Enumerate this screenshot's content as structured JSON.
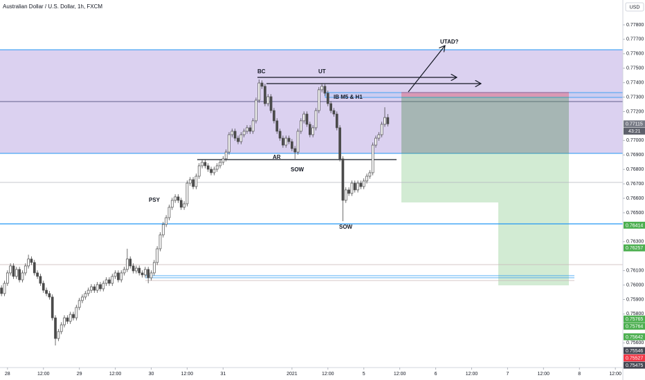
{
  "chart_data": {
    "type": "candlestick",
    "title": "Australian Dollar / U.S. Dollar, 1h, FXCM",
    "currency": "USD",
    "countdown": "43:21",
    "annotations": [
      "BC",
      "UT",
      "UTAD?",
      "IB M5 & H1",
      "AR",
      "SOW",
      "SOW",
      "PSY"
    ],
    "xlim": [
      -0.5,
      207.5
    ],
    "xticks": [
      {
        "value": 2,
        "label": "28"
      },
      {
        "value": 14,
        "label": "12:00"
      },
      {
        "value": 26,
        "label": "29"
      },
      {
        "value": 38,
        "label": "12:00"
      },
      {
        "value": 50,
        "label": "30"
      },
      {
        "value": 62,
        "label": "12:00"
      },
      {
        "value": 74,
        "label": "31"
      },
      {
        "value": 97,
        "label": "2021"
      },
      {
        "value": 109,
        "label": "12:00"
      },
      {
        "value": 121,
        "label": "5"
      },
      {
        "value": 133,
        "label": "12:00"
      },
      {
        "value": 145,
        "label": "6"
      },
      {
        "value": 157,
        "label": "12:00"
      },
      {
        "value": 169,
        "label": "7"
      },
      {
        "value": 181,
        "label": "12:00"
      },
      {
        "value": 193,
        "label": "8"
      },
      {
        "value": 205,
        "label": "12:00"
      }
    ],
    "ylim": [
      0.75429,
      0.77972
    ],
    "yticks": [
      {
        "value": 0.778,
        "label": "0.77800"
      },
      {
        "value": 0.777,
        "label": "0.77700"
      },
      {
        "value": 0.776,
        "label": "0.77600"
      },
      {
        "value": 0.775,
        "label": "0.77500"
      },
      {
        "value": 0.774,
        "label": "0.77400"
      },
      {
        "value": 0.773,
        "label": "0.77300"
      },
      {
        "value": 0.772,
        "label": "0.77200"
      },
      {
        "value": 0.77,
        "label": "0.77000"
      },
      {
        "value": 0.769,
        "label": "0.76900"
      },
      {
        "value": 0.768,
        "label": "0.76800"
      },
      {
        "value": 0.767,
        "label": "0.76700"
      },
      {
        "value": 0.766,
        "label": "0.76600"
      },
      {
        "value": 0.765,
        "label": "0.76500"
      },
      {
        "value": 0.763,
        "label": "0.76300"
      },
      {
        "value": 0.761,
        "label": "0.76100"
      },
      {
        "value": 0.76,
        "label": "0.76000"
      },
      {
        "value": 0.759,
        "label": "0.75900"
      },
      {
        "value": 0.758,
        "label": "0.75800"
      },
      {
        "value": 0.756,
        "label": "0.75600"
      }
    ],
    "grid": false,
    "up_color": "#ffffff",
    "down_color": "#4a4a4a",
    "open": [
      0.7598,
      0.75941,
      0.76012,
      0.76084,
      0.76132,
      0.7606,
      0.76108,
      0.76036,
      0.76084,
      0.76132,
      0.7618,
      0.76156,
      0.76084,
      0.7606,
      0.76012,
      0.75964,
      0.75941,
      0.75917,
      0.75773,
      0.7563,
      0.75678,
      0.75725,
      0.75773,
      0.75749,
      0.75797,
      0.75773,
      0.75845,
      0.75893,
      0.75917,
      0.75941,
      0.75964,
      0.75988,
      0.75964,
      0.76003,
      0.75974,
      0.76012,
      0.76036,
      0.76012,
      0.7606,
      0.76084,
      0.76036,
      0.76084,
      0.76108,
      0.7618,
      0.76132,
      0.76098,
      0.76117,
      0.76084,
      0.7607,
      0.76108,
      0.7605,
      0.76084,
      0.76156,
      0.76251,
      0.76347,
      0.76419,
      0.76466,
      0.76538,
      0.76586,
      0.7661,
      0.76586,
      0.76538,
      0.76562,
      0.76705,
      0.76729,
      0.76681,
      0.76753,
      0.76825,
      0.76849,
      0.76825,
      0.76801,
      0.76777,
      0.76801,
      0.76825,
      0.76849,
      0.76873,
      0.7692,
      0.7704,
      0.77064,
      0.77016,
      0.76992,
      0.7704,
      0.77064,
      0.77088,
      0.77064,
      0.77136,
      0.77279,
      0.77398,
      0.77375,
      0.77255,
      0.77303,
      0.77207,
      0.77136,
      0.77064,
      0.77016,
      0.76968,
      0.77016,
      0.76992,
      0.76944,
      0.7692,
      0.77064,
      0.77136,
      0.77183,
      0.77112,
      0.7704,
      0.77088,
      0.77207,
      0.77351,
      0.77375,
      0.77327,
      0.77255,
      0.77207,
      0.77183,
      0.77088,
      0.76873,
      0.76586,
      0.76658,
      0.76634,
      0.76705,
      0.76658,
      0.76705,
      0.76681,
      0.7672,
      0.76753,
      0.76777,
      0.76968,
      0.77016,
      0.7704,
      0.77112,
      0.77159
    ],
    "high": [
      0.75998,
      0.7603,
      0.76102,
      0.7615,
      0.7615,
      0.76126,
      0.76126,
      0.76102,
      0.7615,
      0.7621,
      0.76198,
      0.76174,
      0.76102,
      0.76078,
      0.7603,
      0.75982,
      0.75959,
      0.75935,
      0.75791,
      0.75696,
      0.75743,
      0.75791,
      0.75791,
      0.75815,
      0.75815,
      0.75863,
      0.75911,
      0.75935,
      0.75959,
      0.75982,
      0.76006,
      0.76006,
      0.76021,
      0.76021,
      0.7603,
      0.76054,
      0.76054,
      0.76078,
      0.76102,
      0.76102,
      0.76102,
      0.76126,
      0.76251,
      0.76198,
      0.7615,
      0.76135,
      0.76135,
      0.76102,
      0.76126,
      0.76126,
      0.76102,
      0.76174,
      0.76269,
      0.76365,
      0.76437,
      0.76484,
      0.76556,
      0.76604,
      0.76628,
      0.76628,
      0.76604,
      0.7658,
      0.76723,
      0.76747,
      0.76747,
      0.76771,
      0.76843,
      0.76867,
      0.76867,
      0.76843,
      0.76819,
      0.76819,
      0.76843,
      0.76867,
      0.76891,
      0.76938,
      0.77058,
      0.77082,
      0.77082,
      0.77034,
      0.77058,
      0.77082,
      0.77106,
      0.77106,
      0.77154,
      0.77297,
      0.77422,
      0.77416,
      0.77393,
      0.77321,
      0.77321,
      0.77225,
      0.77154,
      0.77082,
      0.77034,
      0.77034,
      0.77034,
      0.7701,
      0.76962,
      0.77082,
      0.77154,
      0.77201,
      0.77201,
      0.7713,
      0.77106,
      0.77225,
      0.77369,
      0.77398,
      0.77393,
      0.77345,
      0.77273,
      0.77225,
      0.77201,
      0.77106,
      0.76891,
      0.76676,
      0.76676,
      0.76723,
      0.76723,
      0.76723,
      0.76723,
      0.76738,
      0.76771,
      0.76795,
      0.76986,
      0.77034,
      0.77058,
      0.7713,
      0.7723,
      0.77183
    ],
    "low": [
      0.75923,
      0.75923,
      0.75994,
      0.76066,
      0.76042,
      0.76042,
      0.76018,
      0.76018,
      0.76066,
      0.76114,
      0.76138,
      0.76066,
      0.76042,
      0.75994,
      0.75946,
      0.75923,
      0.75899,
      0.75755,
      0.75582,
      0.75612,
      0.7566,
      0.75707,
      0.75731,
      0.75731,
      0.75755,
      0.75755,
      0.75827,
      0.75875,
      0.75899,
      0.75923,
      0.75946,
      0.75946,
      0.75946,
      0.75956,
      0.75956,
      0.75994,
      0.75994,
      0.75994,
      0.76042,
      0.76018,
      0.76018,
      0.76066,
      0.7609,
      0.76114,
      0.7608,
      0.7608,
      0.76066,
      0.76052,
      0.76052,
      0.76012,
      0.76032,
      0.76066,
      0.76138,
      0.76233,
      0.76329,
      0.76401,
      0.76448,
      0.7652,
      0.76568,
      0.76568,
      0.7652,
      0.7652,
      0.76544,
      0.76687,
      0.76663,
      0.76663,
      0.76735,
      0.76807,
      0.76807,
      0.76783,
      0.76759,
      0.76759,
      0.76783,
      0.76807,
      0.76831,
      0.76855,
      0.76902,
      0.77022,
      0.76998,
      0.76974,
      0.76974,
      0.77022,
      0.77046,
      0.77046,
      0.77046,
      0.77118,
      0.77261,
      0.77357,
      0.77237,
      0.77237,
      0.77189,
      0.77118,
      0.77046,
      0.76998,
      0.7695,
      0.7695,
      0.76974,
      0.76926,
      0.76873,
      0.76902,
      0.77046,
      0.77118,
      0.77094,
      0.77022,
      0.77022,
      0.7707,
      0.77189,
      0.77333,
      0.77309,
      0.77237,
      0.77189,
      0.77165,
      0.7707,
      0.76855,
      0.76442,
      0.76568,
      0.76616,
      0.76616,
      0.7664,
      0.7664,
      0.76663,
      0.76663,
      0.76702,
      0.76735,
      0.76759,
      0.7695,
      0.76998,
      0.77022,
      0.77094,
      0.77097
    ],
    "close": [
      0.75941,
      0.76012,
      0.76084,
      0.76132,
      0.7606,
      0.76108,
      0.76036,
      0.76084,
      0.76132,
      0.7618,
      0.76156,
      0.76084,
      0.7606,
      0.76012,
      0.75964,
      0.75941,
      0.75917,
      0.75773,
      0.7563,
      0.75678,
      0.75725,
      0.75773,
      0.75749,
      0.75797,
      0.75773,
      0.75845,
      0.75893,
      0.75917,
      0.75941,
      0.75964,
      0.75988,
      0.75964,
      0.76003,
      0.75974,
      0.76012,
      0.76036,
      0.76012,
      0.7606,
      0.76084,
      0.76036,
      0.76084,
      0.76108,
      0.7618,
      0.76132,
      0.76098,
      0.76117,
      0.76084,
      0.7607,
      0.76108,
      0.7605,
      0.76084,
      0.76156,
      0.76251,
      0.76347,
      0.76419,
      0.76466,
      0.76538,
      0.76586,
      0.7661,
      0.76586,
      0.76538,
      0.76562,
      0.76705,
      0.76729,
      0.76681,
      0.76753,
      0.76825,
      0.76849,
      0.76825,
      0.76801,
      0.76777,
      0.76801,
      0.76825,
      0.76849,
      0.76873,
      0.7692,
      0.7704,
      0.77064,
      0.77016,
      0.76992,
      0.7704,
      0.77064,
      0.77088,
      0.77064,
      0.77136,
      0.77279,
      0.77398,
      0.77375,
      0.77255,
      0.77303,
      0.77207,
      0.77136,
      0.77064,
      0.77016,
      0.76968,
      0.77016,
      0.76992,
      0.76944,
      0.7692,
      0.77064,
      0.77136,
      0.77183,
      0.77112,
      0.7704,
      0.77088,
      0.77207,
      0.77351,
      0.77375,
      0.77327,
      0.77255,
      0.77207,
      0.77183,
      0.77088,
      0.76873,
      0.76586,
      0.76658,
      0.76634,
      0.76705,
      0.76658,
      0.76705,
      0.76681,
      0.7672,
      0.76753,
      0.76777,
      0.76968,
      0.77016,
      0.7704,
      0.77112,
      0.77159,
      0.77115
    ],
    "price_labels": [
      {
        "value": 0.77115,
        "label": "0.77115",
        "color": "#787b86"
      },
      {
        "value": 0.76414,
        "label": "0.76414",
        "color": "#4caf50"
      },
      {
        "value": 0.76257,
        "label": "0.76257",
        "color": "#4caf50"
      },
      {
        "value": 0.75765,
        "label": "0.75765",
        "color": "#4caf50"
      },
      {
        "value": 0.75764,
        "label": "0.75764",
        "color": "#4caf50"
      },
      {
        "value": 0.75642,
        "label": "0.75642",
        "color": "#4caf50"
      },
      {
        "value": 0.75546,
        "label": "0.75546",
        "color": "#434651"
      },
      {
        "value": 0.75527,
        "label": "0.75527",
        "color": "#f23645"
      },
      {
        "value": 0.75475,
        "label": "0.75475",
        "color": "#434651"
      }
    ]
  }
}
